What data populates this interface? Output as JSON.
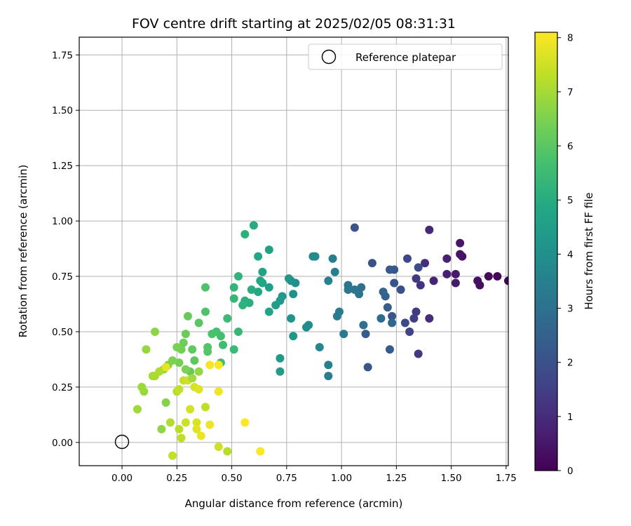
{
  "chart_data": {
    "type": "scatter",
    "title": "FOV centre drift starting at 2025/02/05 08:31:31",
    "xlabel": "Angular distance from reference (arcmin)",
    "ylabel": "Rotation from reference (arcmin)",
    "xlim": [
      -0.195,
      1.76
    ],
    "ylim": [
      -0.105,
      1.83
    ],
    "xticks": [
      0.0,
      0.25,
      0.5,
      0.75,
      1.0,
      1.25,
      1.5,
      1.75
    ],
    "xtick_labels": [
      "0.00",
      "0.25",
      "0.50",
      "0.75",
      "1.00",
      "1.25",
      "1.50",
      "1.75"
    ],
    "yticks": [
      0.0,
      0.25,
      0.5,
      0.75,
      1.0,
      1.25,
      1.5,
      1.75
    ],
    "ytick_labels": [
      "0.00",
      "0.25",
      "0.50",
      "0.75",
      "1.00",
      "1.25",
      "1.50",
      "1.75"
    ],
    "grid": true,
    "colormap": "viridis",
    "colorbar": {
      "label": "Hours from first FF file",
      "range": [
        0,
        8.1
      ],
      "ticks": [
        0,
        1,
        2,
        3,
        4,
        5,
        6,
        7,
        8
      ],
      "tick_labels": [
        "0",
        "1",
        "2",
        "3",
        "4",
        "5",
        "6",
        "7",
        "8"
      ]
    },
    "legend": {
      "placement": "top-right",
      "entries": [
        "Reference platepar"
      ]
    },
    "reference_point": [
      0.0,
      0.0
    ],
    "points": [
      [
        1.76,
        0.73,
        0.0
      ],
      [
        1.71,
        0.75,
        0.1
      ],
      [
        1.67,
        0.75,
        0.2
      ],
      [
        1.63,
        0.71,
        0.3
      ],
      [
        1.62,
        0.73,
        0.35
      ],
      [
        1.55,
        0.84,
        0.4
      ],
      [
        1.54,
        0.85,
        0.45
      ],
      [
        1.54,
        0.9,
        0.5
      ],
      [
        1.52,
        0.76,
        0.55
      ],
      [
        1.52,
        0.72,
        0.6
      ],
      [
        1.48,
        0.76,
        0.7
      ],
      [
        1.48,
        0.83,
        0.75
      ],
      [
        1.42,
        0.73,
        0.8
      ],
      [
        1.4,
        0.96,
        0.9
      ],
      [
        1.4,
        0.56,
        1.0
      ],
      [
        1.38,
        0.81,
        1.1
      ],
      [
        1.36,
        0.71,
        1.2
      ],
      [
        1.35,
        0.4,
        1.3
      ],
      [
        1.34,
        0.74,
        1.35
      ],
      [
        1.34,
        0.59,
        1.4
      ],
      [
        1.33,
        0.56,
        1.5
      ],
      [
        1.31,
        0.5,
        1.6
      ],
      [
        1.3,
        0.83,
        1.7
      ],
      [
        1.29,
        0.54,
        1.8
      ],
      [
        1.35,
        0.79,
        1.9
      ],
      [
        1.27,
        0.69,
        2.0
      ],
      [
        1.24,
        0.72,
        2.1
      ],
      [
        1.23,
        0.57,
        2.15
      ],
      [
        1.24,
        0.78,
        2.2
      ],
      [
        1.22,
        0.78,
        2.25
      ],
      [
        1.22,
        0.42,
        2.3
      ],
      [
        1.21,
        0.61,
        2.4
      ],
      [
        1.2,
        0.66,
        2.5
      ],
      [
        1.19,
        0.68,
        2.6
      ],
      [
        1.23,
        0.54,
        2.7
      ],
      [
        1.18,
        0.56,
        2.8
      ],
      [
        1.14,
        0.81,
        2.0
      ],
      [
        1.12,
        0.34,
        2.2
      ],
      [
        1.11,
        0.49,
        2.3
      ],
      [
        1.1,
        0.53,
        2.9
      ],
      [
        1.09,
        0.7,
        3.0
      ],
      [
        1.08,
        0.67,
        3.05
      ],
      [
        1.06,
        0.97,
        2.1
      ],
      [
        1.06,
        0.69,
        3.1
      ],
      [
        1.03,
        0.69,
        3.2
      ],
      [
        1.03,
        0.71,
        3.15
      ],
      [
        1.01,
        0.49,
        3.3
      ],
      [
        0.99,
        0.59,
        3.35
      ],
      [
        0.98,
        0.57,
        3.4
      ],
      [
        0.97,
        0.77,
        3.5
      ],
      [
        0.96,
        0.83,
        3.45
      ],
      [
        0.94,
        0.3,
        3.4
      ],
      [
        0.94,
        0.35,
        3.5
      ],
      [
        0.94,
        0.73,
        3.6
      ],
      [
        0.9,
        0.43,
        3.7
      ],
      [
        0.88,
        0.84,
        3.8
      ],
      [
        0.87,
        0.84,
        3.85
      ],
      [
        0.85,
        0.53,
        3.9
      ],
      [
        0.84,
        0.52,
        3.95
      ],
      [
        0.79,
        0.72,
        4.0
      ],
      [
        0.78,
        0.67,
        4.05
      ],
      [
        0.77,
        0.73,
        4.1
      ],
      [
        0.76,
        0.74,
        4.15
      ],
      [
        0.77,
        0.56,
        4.2
      ],
      [
        0.78,
        0.48,
        4.25
      ],
      [
        0.73,
        0.66,
        4.3
      ],
      [
        0.72,
        0.64,
        4.35
      ],
      [
        0.72,
        0.38,
        4.4
      ],
      [
        0.72,
        0.32,
        4.45
      ],
      [
        0.7,
        0.62,
        4.5
      ],
      [
        0.67,
        0.7,
        4.55
      ],
      [
        0.67,
        0.87,
        4.6
      ],
      [
        0.67,
        0.59,
        4.65
      ],
      [
        0.64,
        0.77,
        4.7
      ],
      [
        0.64,
        0.72,
        4.75
      ],
      [
        0.63,
        0.73,
        4.8
      ],
      [
        0.62,
        0.84,
        4.85
      ],
      [
        0.62,
        0.68,
        4.9
      ],
      [
        0.6,
        0.98,
        4.95
      ],
      [
        0.59,
        0.69,
        5.0
      ],
      [
        0.58,
        0.63,
        5.05
      ],
      [
        0.56,
        0.64,
        5.1
      ],
      [
        0.56,
        0.94,
        5.15
      ],
      [
        0.55,
        0.62,
        5.2
      ],
      [
        0.53,
        0.75,
        5.25
      ],
      [
        0.51,
        0.7,
        5.3
      ],
      [
        0.51,
        0.65,
        5.35
      ],
      [
        0.53,
        0.5,
        5.4
      ],
      [
        0.51,
        0.42,
        5.45
      ],
      [
        0.48,
        0.56,
        5.5
      ],
      [
        0.45,
        0.36,
        5.55
      ],
      [
        0.46,
        0.44,
        5.6
      ],
      [
        0.45,
        0.48,
        5.65
      ],
      [
        0.43,
        0.5,
        5.7
      ],
      [
        0.41,
        0.49,
        5.75
      ],
      [
        0.38,
        0.7,
        5.8
      ],
      [
        0.38,
        0.59,
        5.85
      ],
      [
        0.39,
        0.43,
        5.9
      ],
      [
        0.39,
        0.41,
        5.95
      ],
      [
        0.35,
        0.54,
        6.0
      ],
      [
        0.33,
        0.37,
        6.05
      ],
      [
        0.32,
        0.42,
        6.1
      ],
      [
        0.31,
        0.32,
        6.15
      ],
      [
        0.3,
        0.57,
        6.2
      ],
      [
        0.29,
        0.49,
        6.25
      ],
      [
        0.28,
        0.45,
        6.3
      ],
      [
        0.27,
        0.42,
        6.35
      ],
      [
        0.26,
        0.36,
        6.4
      ],
      [
        0.25,
        0.43,
        6.45
      ],
      [
        0.23,
        0.37,
        6.5
      ],
      [
        0.21,
        0.35,
        6.55
      ],
      [
        0.2,
        0.18,
        6.6
      ],
      [
        0.19,
        0.33,
        6.65
      ],
      [
        0.15,
        0.5,
        6.7
      ],
      [
        0.18,
        0.06,
        6.75
      ],
      [
        0.11,
        0.42,
        6.8
      ],
      [
        0.1,
        0.23,
        6.85
      ],
      [
        0.09,
        0.25,
        6.9
      ],
      [
        0.07,
        0.15,
        6.95
      ],
      [
        0.14,
        0.3,
        7.0
      ],
      [
        0.15,
        0.3,
        7.05
      ],
      [
        0.17,
        0.32,
        7.1
      ],
      [
        0.22,
        0.09,
        7.15
      ],
      [
        0.25,
        0.23,
        7.2
      ],
      [
        0.26,
        0.06,
        7.25
      ],
      [
        0.27,
        0.02,
        7.3
      ],
      [
        0.26,
        0.24,
        7.35
      ],
      [
        0.28,
        0.28,
        7.4
      ],
      [
        0.29,
        0.09,
        7.45
      ],
      [
        0.3,
        0.28,
        7.5
      ],
      [
        0.31,
        0.15,
        7.55
      ],
      [
        0.33,
        0.25,
        7.6
      ],
      [
        0.34,
        0.09,
        7.65
      ],
      [
        0.35,
        0.24,
        7.7
      ],
      [
        0.34,
        0.06,
        7.75
      ],
      [
        0.38,
        0.16,
        7.3
      ],
      [
        0.23,
        -0.06,
        7.4
      ],
      [
        0.2,
        0.34,
        7.8
      ],
      [
        0.36,
        0.03,
        7.85
      ],
      [
        0.4,
        0.08,
        7.9
      ],
      [
        0.44,
        0.23,
        7.95
      ],
      [
        0.44,
        -0.02,
        7.5
      ],
      [
        0.48,
        -0.04,
        7.2
      ],
      [
        0.4,
        0.35,
        8.0
      ],
      [
        0.44,
        0.35,
        8.05
      ],
      [
        0.56,
        0.09,
        8.1
      ],
      [
        0.63,
        -0.04,
        8.05
      ],
      [
        0.35,
        0.32,
        6.8
      ],
      [
        0.29,
        0.33,
        6.5
      ],
      [
        0.32,
        0.29,
        7.0
      ]
    ]
  }
}
